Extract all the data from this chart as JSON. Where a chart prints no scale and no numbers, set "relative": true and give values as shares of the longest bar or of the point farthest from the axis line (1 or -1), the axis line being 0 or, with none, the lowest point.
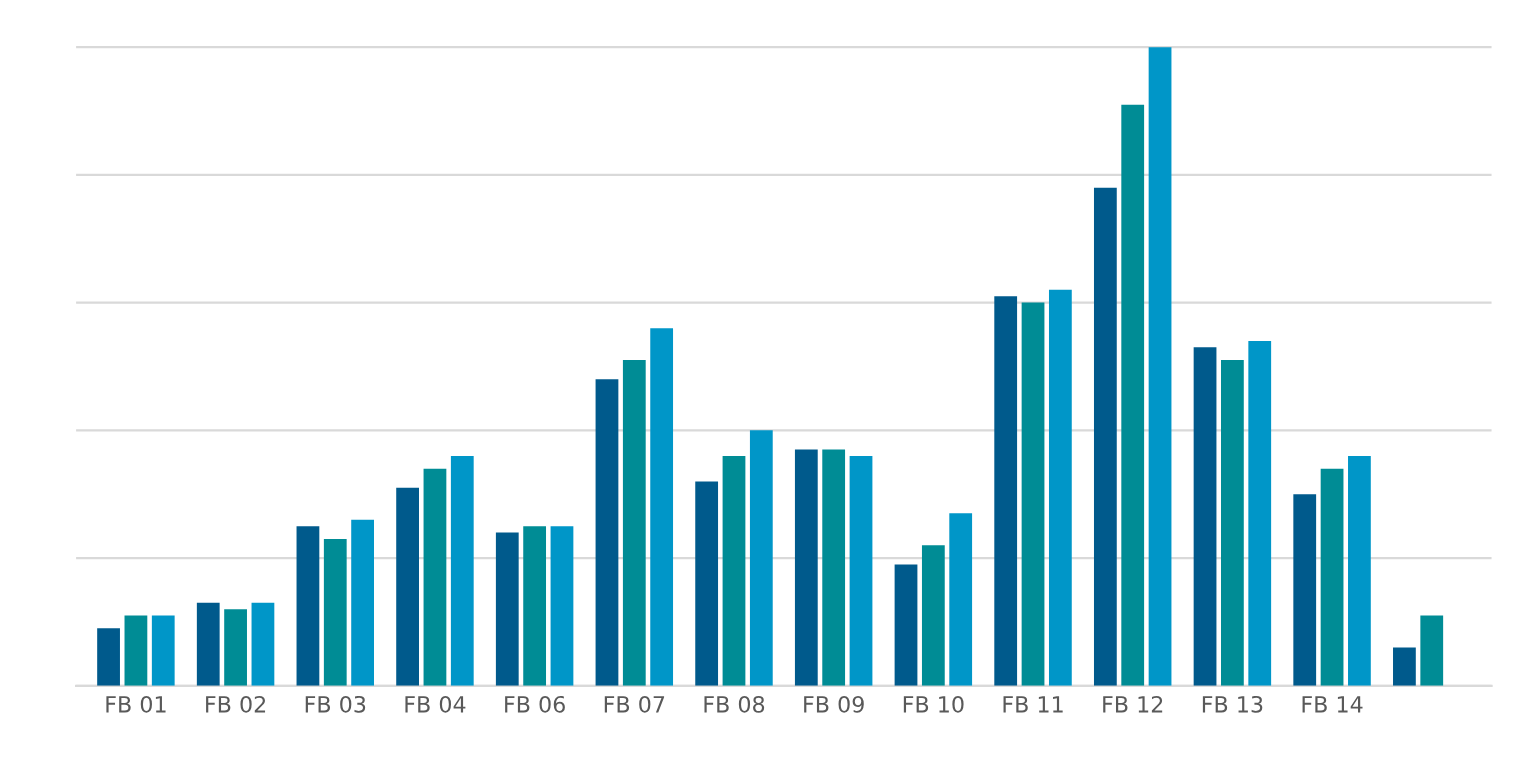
{
  "chart_data": {
    "type": "bar",
    "relative": true,
    "grid": "y",
    "legend": false,
    "categories": [
      "FB 01",
      "FB 02",
      "FB 03",
      "FB 04",
      "FB 06",
      "FB 07",
      "FB 08",
      "FB 09",
      "FB 10",
      "FB 11",
      "FB 12",
      "FB 13",
      "FB 14",
      null
    ],
    "series": [
      {
        "color": "#005a8c",
        "values": [
          0.09,
          0.13,
          0.25,
          0.31,
          0.24,
          0.48,
          0.32,
          0.37,
          0.19,
          0.61,
          0.78,
          0.53,
          0.3,
          0.06
        ]
      },
      {
        "color": "#008c95",
        "values": [
          0.11,
          0.12,
          0.23,
          0.34,
          0.25,
          0.51,
          0.36,
          0.37,
          0.22,
          0.6,
          0.91,
          0.51,
          0.34,
          0.11
        ]
      },
      {
        "color": "#0096c8",
        "values": [
          0.11,
          0.13,
          0.26,
          0.36,
          0.25,
          0.56,
          0.4,
          0.36,
          0.27,
          0.62,
          1,
          0.54,
          0.36,
          null
        ]
      }
    ]
  }
}
